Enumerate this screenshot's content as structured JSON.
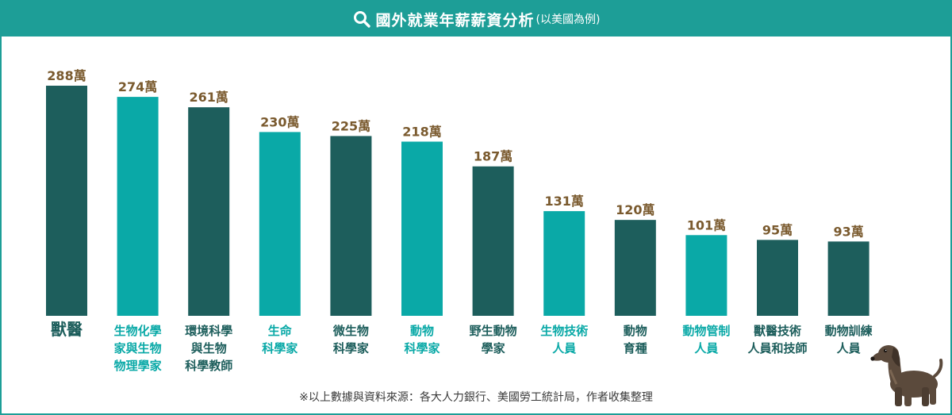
{
  "header": {
    "title": "國外就業年薪薪資分析",
    "subtitle": "(以美國為例)",
    "icon": "search-icon"
  },
  "colors": {
    "dark": "#1d5e5c",
    "light": "#0aa9a7",
    "value_text": "#7a5a2e",
    "header_bg": "#1d9e97"
  },
  "chart_data": {
    "type": "bar",
    "categories": [
      [
        "獸醫"
      ],
      [
        "生物化學",
        "家與生物",
        "物理學家"
      ],
      [
        "環境科學",
        "與生物",
        "科學教師"
      ],
      [
        "生命",
        "科學家"
      ],
      [
        "微生物",
        "科學家"
      ],
      [
        "動物",
        "科學家"
      ],
      [
        "野生動物",
        "學家"
      ],
      [
        "生物技術",
        "人員"
      ],
      [
        "動物",
        "育種"
      ],
      [
        "動物管制",
        "人員"
      ],
      [
        "獸醫技術",
        "人員和技師"
      ],
      [
        "動物訓練",
        "人員"
      ]
    ],
    "values": [
      288,
      274,
      261,
      230,
      225,
      218,
      187,
      131,
      120,
      101,
      95,
      93
    ],
    "value_labels": [
      "288萬",
      "274萬",
      "261萬",
      "230萬",
      "225萬",
      "218萬",
      "187萬",
      "131萬",
      "120萬",
      "101萬",
      "95萬",
      "93萬"
    ],
    "bar_colors": [
      "dark",
      "light",
      "dark",
      "light",
      "dark",
      "light",
      "dark",
      "light",
      "dark",
      "light",
      "dark",
      "dark"
    ],
    "unit": "萬",
    "ylim": [
      0,
      288
    ]
  },
  "footnote": "※以上數據與資料來源：各大人力銀行、美國勞工統計局，作者收集整理"
}
